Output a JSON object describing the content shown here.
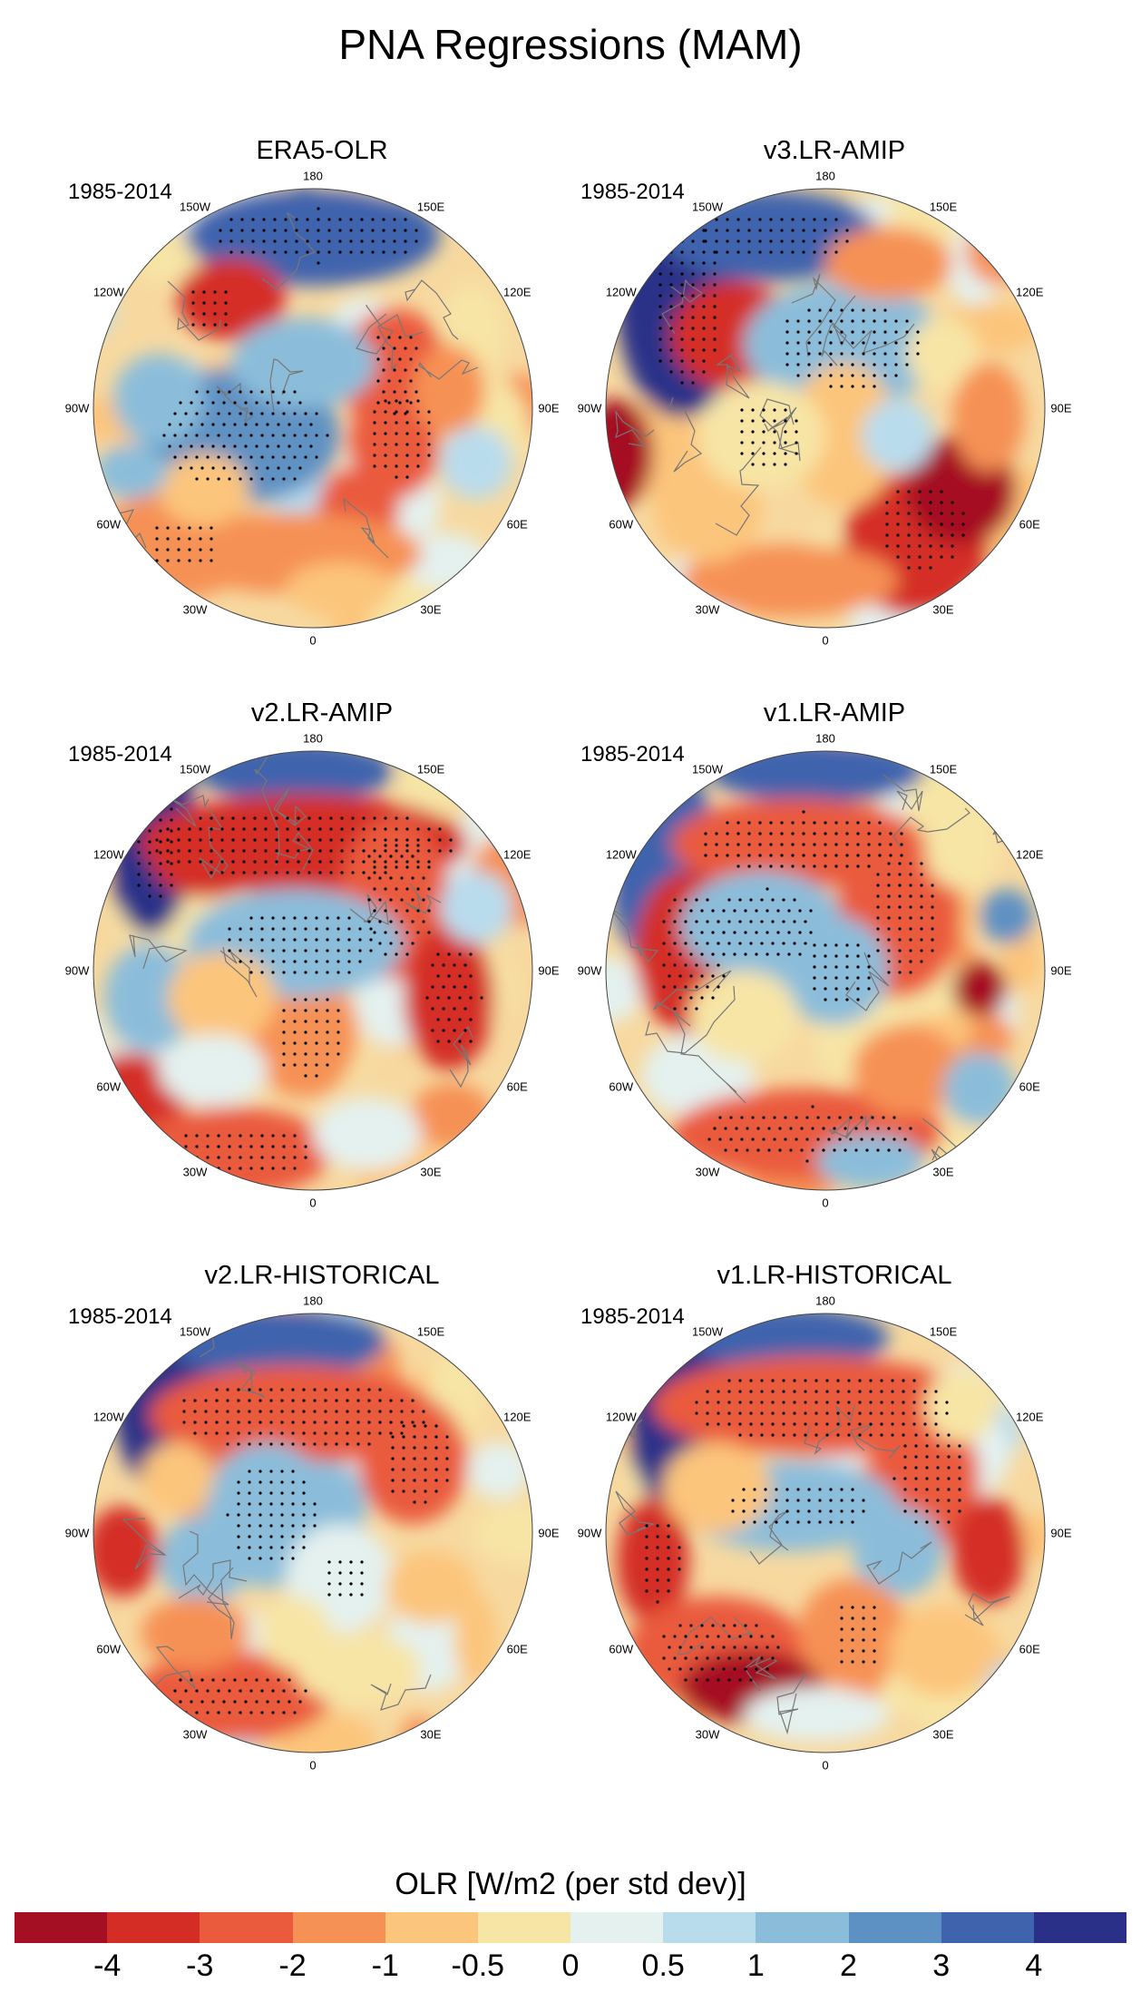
{
  "title": "PNA Regressions (MAM)",
  "chart_data": {
    "type": "heatmap",
    "projection": "north polar stereographic",
    "variable": "OLR",
    "period": "1985-2014",
    "stippling": "statistically significant regions",
    "longitude_labels": [
      "180",
      "150E",
      "120E",
      "90E",
      "60E",
      "30E",
      "0",
      "30W",
      "60W",
      "90W",
      "120W",
      "150W"
    ],
    "panels": [
      {
        "title": "ERA5-OLR",
        "period": "1985-2014"
      },
      {
        "title": "v3.LR-AMIP",
        "period": "1985-2014"
      },
      {
        "title": "v2.LR-AMIP",
        "period": "1985-2014"
      },
      {
        "title": "v1.LR-AMIP",
        "period": "1985-2014"
      },
      {
        "title": "v2.LR-HISTORICAL",
        "period": "1985-2014"
      },
      {
        "title": "v1.LR-HISTORICAL",
        "period": "1985-2014"
      }
    ],
    "colorbar": {
      "title": "OLR [W/m2 (per std dev)]",
      "ticks": [
        "-4",
        "-3",
        "-2",
        "-1",
        "-0.5",
        "0",
        "0.5",
        "1",
        "2",
        "3",
        "4"
      ],
      "colors": [
        "#a50f24",
        "#d42d26",
        "#ea5a3c",
        "#f69155",
        "#fcc57c",
        "#f7e5a6",
        "#e4f1ef",
        "#b9dced",
        "#8bbdda",
        "#5e91c3",
        "#3f63ad",
        "#2a3088"
      ]
    }
  }
}
